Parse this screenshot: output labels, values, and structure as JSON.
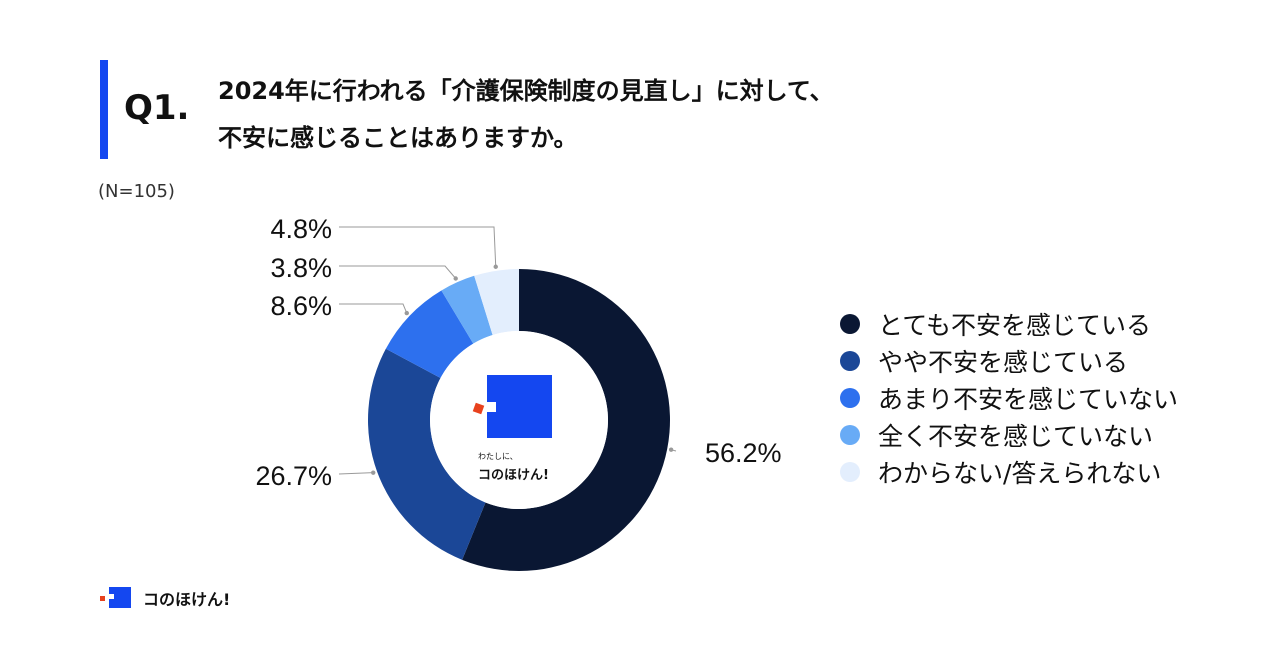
{
  "question": {
    "label": "Q1.",
    "line1": "2024年に行われる「介護保険制度の見直し」に対して、",
    "line2": "不安に感じることはありますか。",
    "accent_color": "#1447f0"
  },
  "sample": "(N=105)",
  "center_logo": {
    "tagline": "わたしに、",
    "brand": "コのほけん!"
  },
  "footer": {
    "brand": "コのほけん!"
  },
  "chart_data": {
    "type": "pie",
    "donut": true,
    "categories": [
      "とても不安を感じている",
      "やや不安を感じている",
      "あまり不安を感じていない",
      "全く不安を感じていない",
      "わからない/答えられない"
    ],
    "values": [
      56.2,
      26.7,
      8.6,
      3.8,
      4.8
    ],
    "labels": [
      "56.2%",
      "26.7%",
      "8.6%",
      "3.8%",
      "4.8%"
    ],
    "colors": [
      "#0a1733",
      "#1b4797",
      "#2d70ee",
      "#68abf6",
      "#e3eefd"
    ],
    "legend_position": "right"
  }
}
